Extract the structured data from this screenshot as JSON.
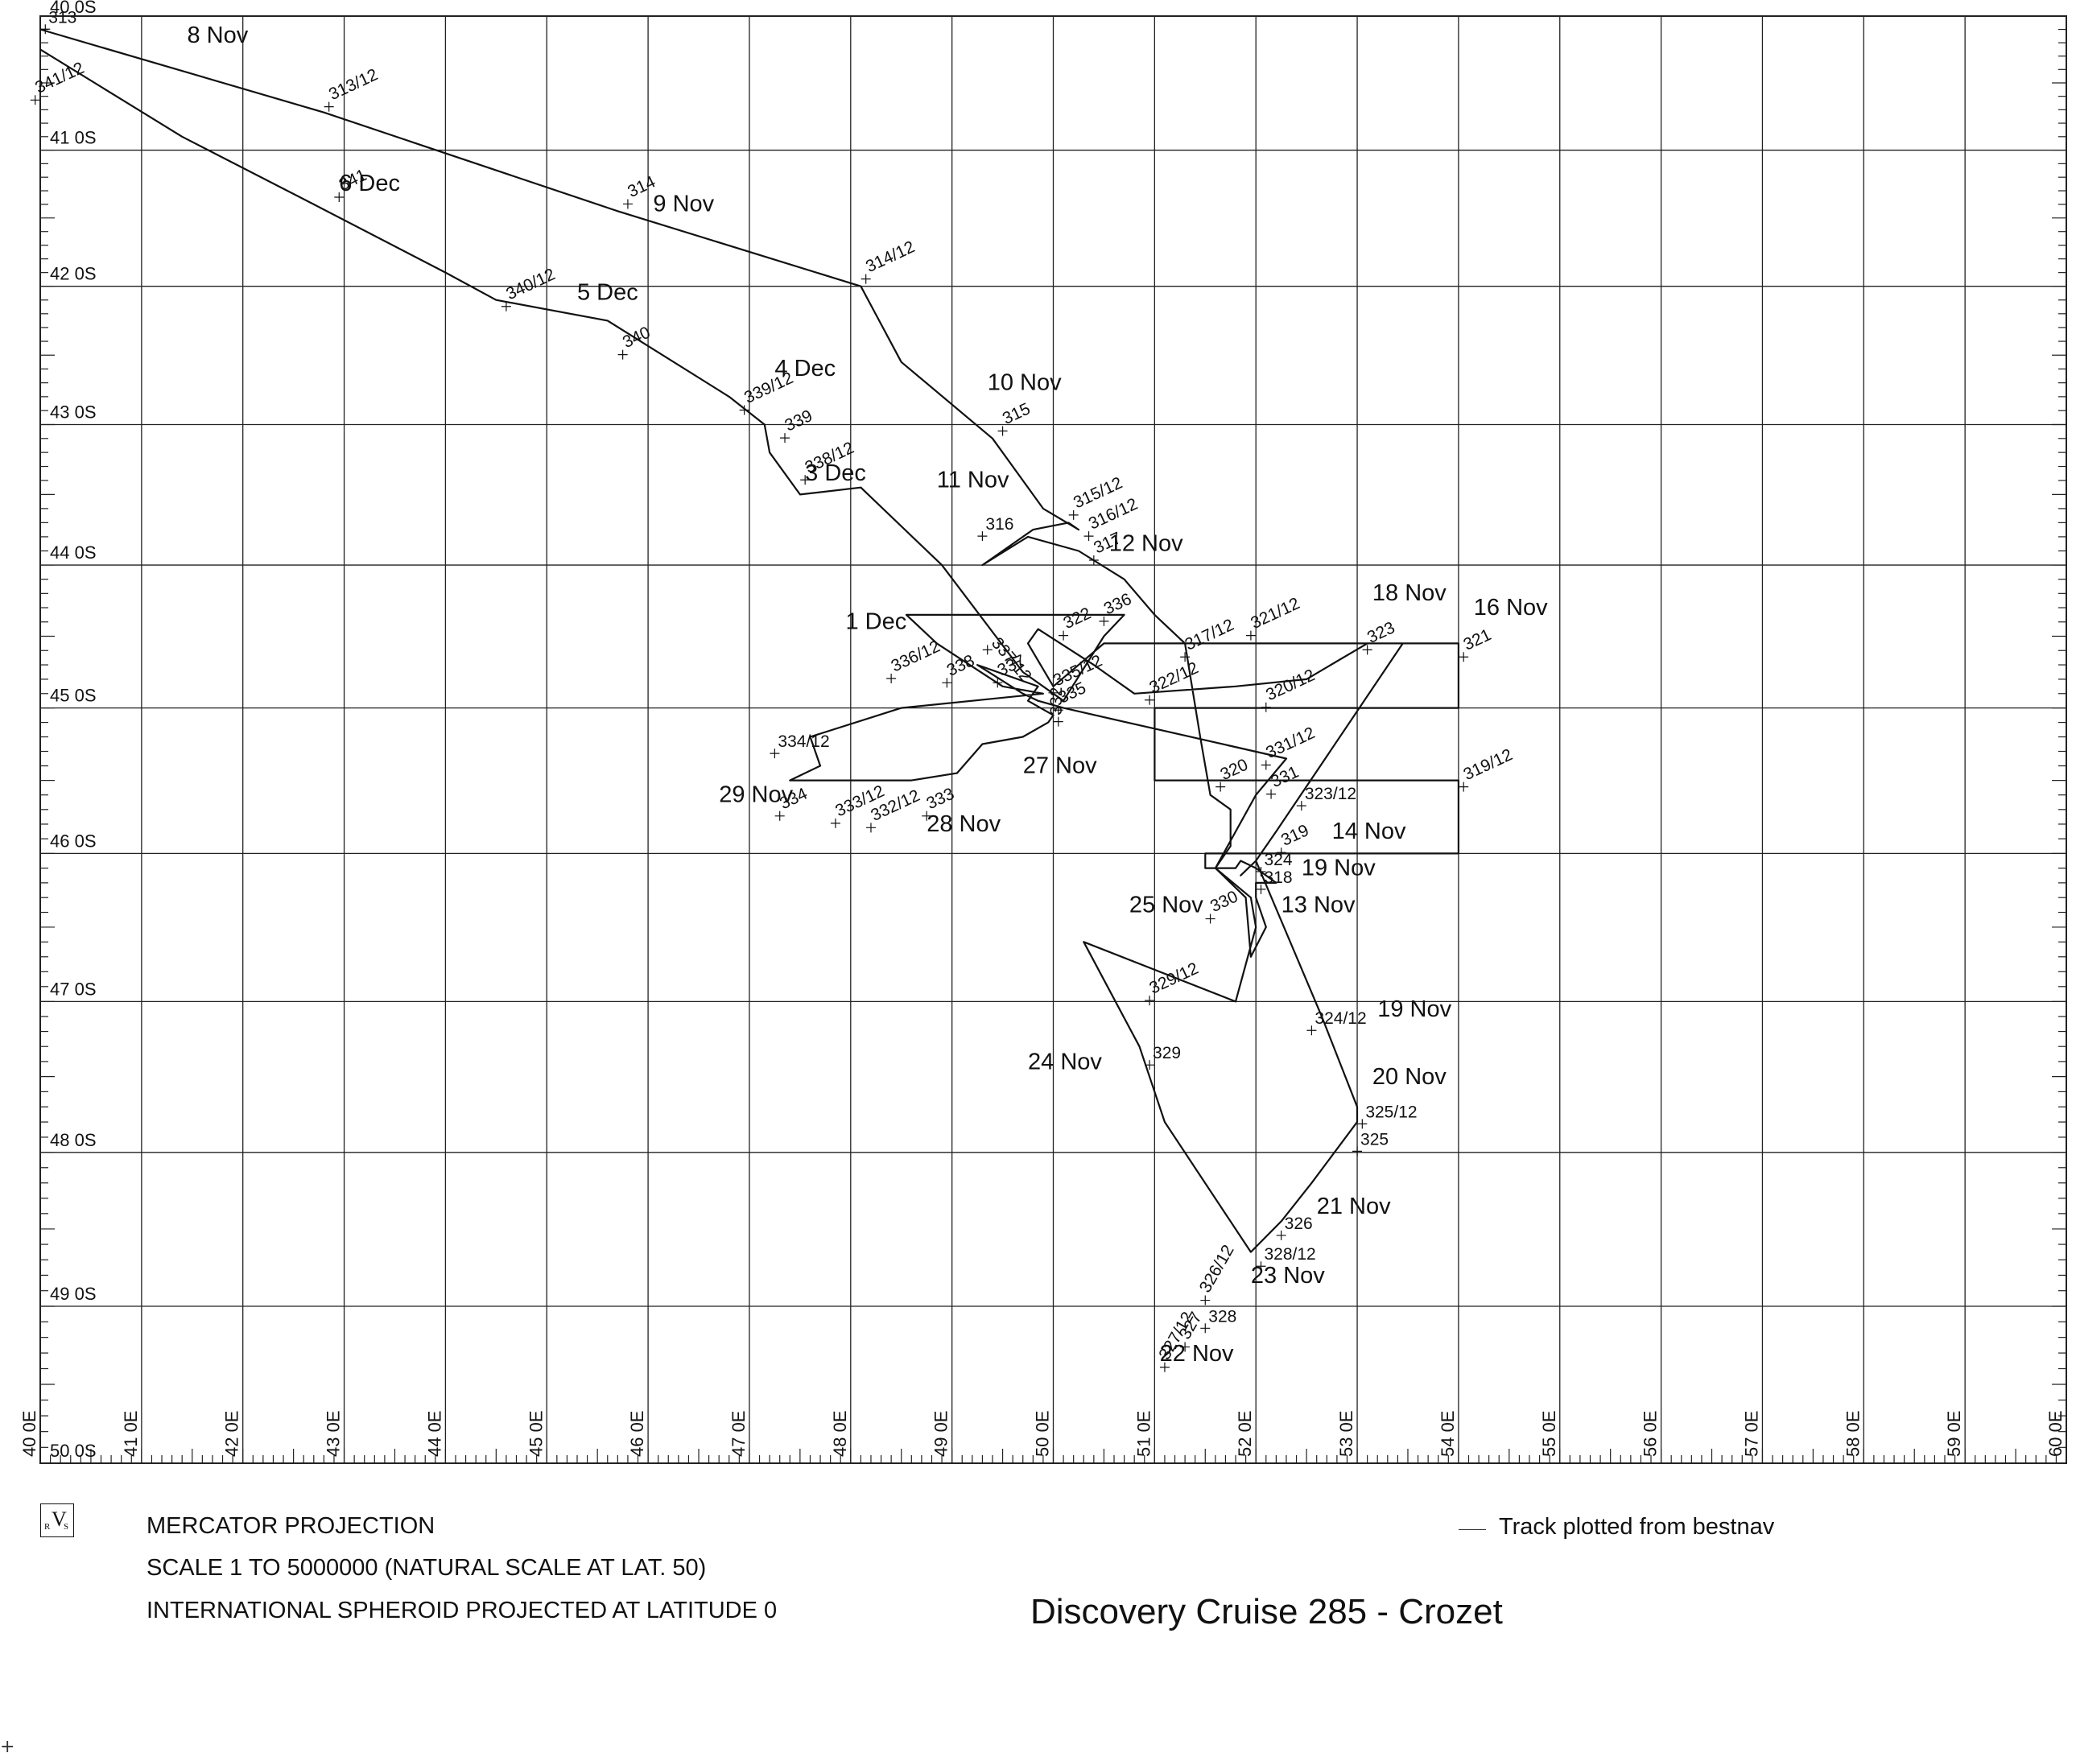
{
  "map": {
    "lon_ticks": [
      "40 0E",
      "41 0E",
      "42 0E",
      "43 0E",
      "44 0E",
      "45 0E",
      "46 0E",
      "47 0E",
      "48 0E",
      "49 0E",
      "50 0E",
      "51 0E",
      "52 0E",
      "53 0E",
      "54 0E",
      "55 0E",
      "56 0E",
      "57 0E",
      "58 0E",
      "59 0E",
      "60 0E"
    ],
    "lat_ticks": [
      "40 0S",
      "41 0S",
      "42 0S",
      "43 0S",
      "44 0S",
      "45 0S",
      "46 0S",
      "47 0S",
      "48 0S",
      "49 0S",
      "50 0S"
    ],
    "lon_range": [
      40,
      60
    ],
    "lat_range": [
      -50,
      -40
    ],
    "track_color": "#111111",
    "grid_color": "#222222"
  },
  "track": [
    [
      40.0,
      -40.1
    ],
    [
      42.8,
      -40.72
    ],
    [
      45.7,
      -41.45
    ],
    [
      48.1,
      -42.0
    ],
    [
      48.5,
      -42.55
    ],
    [
      49.4,
      -43.1
    ],
    [
      49.9,
      -43.6
    ],
    [
      50.25,
      -43.75
    ],
    [
      50.15,
      -43.7
    ],
    [
      49.8,
      -43.75
    ],
    [
      49.3,
      -44.0
    ],
    [
      49.75,
      -43.8
    ],
    [
      50.25,
      -43.9
    ],
    [
      50.7,
      -44.1
    ],
    [
      51.0,
      -44.35
    ],
    [
      51.3,
      -44.55
    ],
    [
      51.45,
      -45.2
    ],
    [
      51.55,
      -45.6
    ],
    [
      51.75,
      -45.7
    ],
    [
      51.75,
      -45.95
    ],
    [
      51.6,
      -46.1
    ],
    [
      51.95,
      -46.3
    ],
    [
      52.0,
      -46.5
    ],
    [
      51.8,
      -47.0
    ],
    [
      50.3,
      -46.6
    ],
    [
      50.85,
      -47.3
    ],
    [
      51.1,
      -47.8
    ],
    [
      51.95,
      -48.65
    ],
    [
      52.25,
      -48.45
    ],
    [
      52.55,
      -48.2
    ],
    [
      53.0,
      -47.8
    ],
    [
      53.0,
      -47.7
    ],
    [
      52.65,
      -47.1
    ],
    [
      52.0,
      -46.05
    ],
    [
      51.85,
      -46.15
    ],
    [
      52.0,
      -46.05
    ],
    [
      52.2,
      -45.85
    ],
    [
      53.45,
      -44.55
    ],
    [
      53.1,
      -44.55
    ],
    [
      52.5,
      -44.8
    ],
    [
      51.8,
      -44.85
    ],
    [
      50.8,
      -44.9
    ],
    [
      50.4,
      -44.7
    ],
    [
      49.85,
      -44.45
    ],
    [
      49.75,
      -44.55
    ],
    [
      50.0,
      -44.85
    ],
    [
      50.5,
      -44.55
    ],
    [
      51.0,
      -44.55
    ],
    [
      54.0,
      -44.55
    ],
    [
      54.0,
      -45.0
    ],
    [
      51.0,
      -45.0
    ],
    [
      51.0,
      -45.5
    ],
    [
      54.0,
      -45.5
    ],
    [
      54.0,
      -46.0
    ],
    [
      51.5,
      -46.0
    ],
    [
      51.5,
      -46.1
    ],
    [
      51.8,
      -46.1
    ],
    [
      51.85,
      -46.05
    ],
    [
      52.0,
      -46.1
    ],
    [
      52.2,
      -46.2
    ],
    [
      52.0,
      -46.2
    ],
    [
      52.0,
      -46.3
    ],
    [
      52.1,
      -46.5
    ],
    [
      51.95,
      -46.7
    ],
    [
      51.9,
      -46.3
    ],
    [
      51.6,
      -46.1
    ],
    [
      52.0,
      -45.6
    ],
    [
      52.3,
      -45.35
    ],
    [
      50.1,
      -45.0
    ],
    [
      49.85,
      -44.95
    ],
    [
      49.7,
      -44.9
    ],
    [
      49.25,
      -44.7
    ],
    [
      49.85,
      -44.85
    ],
    [
      49.75,
      -44.95
    ],
    [
      50.0,
      -45.05
    ],
    [
      49.95,
      -45.1
    ],
    [
      49.7,
      -45.2
    ],
    [
      49.3,
      -45.25
    ],
    [
      49.05,
      -45.45
    ],
    [
      48.6,
      -45.5
    ],
    [
      47.4,
      -45.5
    ],
    [
      47.7,
      -45.4
    ],
    [
      47.6,
      -45.2
    ],
    [
      48.5,
      -45.0
    ],
    [
      49.9,
      -44.9
    ],
    [
      49.5,
      -44.85
    ],
    [
      48.85,
      -44.55
    ],
    [
      48.55,
      -44.35
    ],
    [
      50.7,
      -44.35
    ],
    [
      50.5,
      -44.5
    ],
    [
      50.1,
      -44.95
    ],
    [
      49.7,
      -44.75
    ],
    [
      48.9,
      -44.0
    ],
    [
      48.1,
      -43.45
    ],
    [
      47.5,
      -43.5
    ],
    [
      47.2,
      -43.2
    ],
    [
      47.15,
      -43.0
    ],
    [
      46.8,
      -42.8
    ],
    [
      45.6,
      -42.25
    ],
    [
      44.5,
      -42.1
    ],
    [
      44.0,
      -41.9
    ],
    [
      42.7,
      -41.4
    ],
    [
      41.4,
      -40.9
    ],
    [
      40.0,
      -40.25
    ]
  ],
  "date_labels": [
    {
      "text": "8 Nov",
      "lon": 41.45,
      "lat": -40.2
    },
    {
      "text": "9 Nov",
      "lon": 46.05,
      "lat": -41.45
    },
    {
      "text": "10 Nov",
      "lon": 49.35,
      "lat": -42.75
    },
    {
      "text": "11 Nov",
      "lon": 48.85,
      "lat": -43.45
    },
    {
      "text": "12 Nov",
      "lon": 50.55,
      "lat": -43.9
    },
    {
      "text": "6 Dec",
      "lon": 42.95,
      "lat": -41.3
    },
    {
      "text": "5 Dec",
      "lon": 45.3,
      "lat": -42.1
    },
    {
      "text": "4 Dec",
      "lon": 47.25,
      "lat": -42.65
    },
    {
      "text": "3 Dec",
      "lon": 47.55,
      "lat": -43.4
    },
    {
      "text": "1 Dec",
      "lon": 47.95,
      "lat": -44.45
    },
    {
      "text": "18 Nov",
      "lon": 53.15,
      "lat": -44.25
    },
    {
      "text": "16 Nov",
      "lon": 54.15,
      "lat": -44.35
    },
    {
      "text": "27 Nov",
      "lon": 49.7,
      "lat": -45.45
    },
    {
      "text": "29 Nov",
      "lon": 46.7,
      "lat": -45.65
    },
    {
      "text": "28 Nov",
      "lon": 48.75,
      "lat": -45.85
    },
    {
      "text": "14 Nov",
      "lon": 52.75,
      "lat": -45.9
    },
    {
      "text": "19 Nov",
      "lon": 52.45,
      "lat": -46.15
    },
    {
      "text": "25 Nov",
      "lon": 50.75,
      "lat": -46.4
    },
    {
      "text": "13 Nov",
      "lon": 52.25,
      "lat": -46.4
    },
    {
      "text": "19 Nov",
      "lon": 53.2,
      "lat": -47.1
    },
    {
      "text": "24 Nov",
      "lon": 49.75,
      "lat": -47.45
    },
    {
      "text": "20 Nov",
      "lon": 53.15,
      "lat": -47.55
    },
    {
      "text": "21 Nov",
      "lon": 52.6,
      "lat": -48.4
    },
    {
      "text": "23 Nov",
      "lon": 51.95,
      "lat": -48.85
    },
    {
      "text": "22 Nov",
      "lon": 51.05,
      "lat": -49.35
    }
  ],
  "fix_labels": [
    {
      "text": "313",
      "lon": 40.05,
      "lat": -40.05,
      "rot": 0
    },
    {
      "text": "341/12",
      "lon": 39.95,
      "lat": -40.58,
      "rot": -25
    },
    {
      "text": "313/12",
      "lon": 42.85,
      "lat": -40.63,
      "rot": -25
    },
    {
      "text": "341",
      "lon": 42.95,
      "lat": -41.3,
      "rot": -25
    },
    {
      "text": "314",
      "lon": 45.8,
      "lat": -41.35,
      "rot": -25
    },
    {
      "text": "314/12",
      "lon": 48.15,
      "lat": -41.9,
      "rot": -25
    },
    {
      "text": "340/12",
      "lon": 44.6,
      "lat": -42.1,
      "rot": -25
    },
    {
      "text": "340",
      "lon": 45.75,
      "lat": -42.45,
      "rot": -25
    },
    {
      "text": "339/12",
      "lon": 46.95,
      "lat": -42.85,
      "rot": -25
    },
    {
      "text": "339",
      "lon": 47.35,
      "lat": -43.05,
      "rot": -25
    },
    {
      "text": "338/12",
      "lon": 47.55,
      "lat": -43.35,
      "rot": -25
    },
    {
      "text": "315",
      "lon": 49.5,
      "lat": -43.0,
      "rot": -25
    },
    {
      "text": "315/12",
      "lon": 50.2,
      "lat": -43.6,
      "rot": -25
    },
    {
      "text": "316/12",
      "lon": 50.35,
      "lat": -43.75,
      "rot": -25
    },
    {
      "text": "317",
      "lon": 50.4,
      "lat": -43.92,
      "rot": -25
    },
    {
      "text": "316",
      "lon": 49.3,
      "lat": -43.75,
      "rot": 0
    },
    {
      "text": "336",
      "lon": 50.5,
      "lat": -44.35,
      "rot": -25
    },
    {
      "text": "322",
      "lon": 50.1,
      "lat": -44.45,
      "rot": -25
    },
    {
      "text": "337/12",
      "lon": 49.35,
      "lat": -44.55,
      "rot": 50
    },
    {
      "text": "336/12",
      "lon": 48.4,
      "lat": -44.75,
      "rot": -25
    },
    {
      "text": "338",
      "lon": 48.95,
      "lat": -44.78,
      "rot": -25
    },
    {
      "text": "337",
      "lon": 49.45,
      "lat": -44.78,
      "rot": -25
    },
    {
      "text": "335/12",
      "lon": 50.0,
      "lat": -44.85,
      "rot": -25
    },
    {
      "text": "335",
      "lon": 50.05,
      "lat": -44.97,
      "rot": -25
    },
    {
      "text": "332",
      "lon": 50.05,
      "lat": -45.05,
      "rot": -90
    },
    {
      "text": "317/12",
      "lon": 51.3,
      "lat": -44.6,
      "rot": -25
    },
    {
      "text": "321/12",
      "lon": 51.95,
      "lat": -44.45,
      "rot": -25
    },
    {
      "text": "322/12",
      "lon": 50.95,
      "lat": -44.9,
      "rot": -25
    },
    {
      "text": "320/12",
      "lon": 52.1,
      "lat": -44.95,
      "rot": -25
    },
    {
      "text": "323",
      "lon": 53.1,
      "lat": -44.55,
      "rot": -25
    },
    {
      "text": "321",
      "lon": 54.05,
      "lat": -44.6,
      "rot": -25
    },
    {
      "text": "334/12",
      "lon": 47.25,
      "lat": -45.27,
      "rot": 0
    },
    {
      "text": "334",
      "lon": 47.3,
      "lat": -45.7,
      "rot": -25
    },
    {
      "text": "333/12",
      "lon": 47.85,
      "lat": -45.75,
      "rot": -25
    },
    {
      "text": "332/12",
      "lon": 48.2,
      "lat": -45.78,
      "rot": -25
    },
    {
      "text": "333",
      "lon": 48.75,
      "lat": -45.7,
      "rot": -25
    },
    {
      "text": "331/12",
      "lon": 52.1,
      "lat": -45.35,
      "rot": -25
    },
    {
      "text": "320",
      "lon": 51.65,
      "lat": -45.5,
      "rot": -25
    },
    {
      "text": "331",
      "lon": 52.15,
      "lat": -45.55,
      "rot": -25
    },
    {
      "text": "323/12",
      "lon": 52.45,
      "lat": -45.63,
      "rot": 0
    },
    {
      "text": "319/12",
      "lon": 54.05,
      "lat": -45.5,
      "rot": -25
    },
    {
      "text": "319",
      "lon": 52.25,
      "lat": -45.95,
      "rot": -25
    },
    {
      "text": "324",
      "lon": 52.05,
      "lat": -46.08,
      "rot": 0
    },
    {
      "text": "318",
      "lon": 52.05,
      "lat": -46.2,
      "rot": 0
    },
    {
      "text": "330",
      "lon": 51.55,
      "lat": -46.4,
      "rot": -25
    },
    {
      "text": "329/12",
      "lon": 50.95,
      "lat": -46.95,
      "rot": -25
    },
    {
      "text": "324/12",
      "lon": 52.55,
      "lat": -47.15,
      "rot": 0
    },
    {
      "text": "329",
      "lon": 50.95,
      "lat": -47.38,
      "rot": 0
    },
    {
      "text": "325/12",
      "lon": 53.05,
      "lat": -47.77,
      "rot": 0
    },
    {
      "text": "325",
      "lon": 53.0,
      "lat": -47.95,
      "rot": 0
    },
    {
      "text": "326",
      "lon": 52.25,
      "lat": -48.5,
      "rot": 0
    },
    {
      "text": "328/12",
      "lon": 52.05,
      "lat": -48.7,
      "rot": 0
    },
    {
      "text": "326/12",
      "lon": 51.5,
      "lat": -48.92,
      "rot": -60
    },
    {
      "text": "328",
      "lon": 51.5,
      "lat": -49.1,
      "rot": 0
    },
    {
      "text": "327/12",
      "lon": 51.1,
      "lat": -49.35,
      "rot": -60
    },
    {
      "text": "327",
      "lon": 51.3,
      "lat": -49.22,
      "rot": -60
    }
  ],
  "footer": {
    "projection": "MERCATOR PROJECTION",
    "scale": "SCALE  1  TO  5000000 (NATURAL SCALE AT LAT. 50)",
    "spheroid": "INTERNATIONAL SPHEROID PROJECTED AT LATITUDE 0",
    "legend": "Track plotted from bestnav",
    "title": "Discovery Cruise 285 - Crozet",
    "logo": "RVS",
    "corner_mark": "+"
  }
}
